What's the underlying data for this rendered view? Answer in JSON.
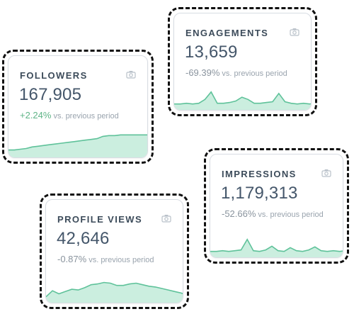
{
  "colors": {
    "accent_line": "#5fc29a",
    "accent_fill": "#cbeedf",
    "positive": "#5fb487",
    "neutral_change": "#8a949e",
    "title": "#3c4b5a",
    "value": "#44566a"
  },
  "cards": {
    "engagements": {
      "title": "ENGAGEMENTS",
      "value": "13,659",
      "change": "-69.39%",
      "comparison": "vs. previous period",
      "icon": "camera-icon",
      "spark": [
        4,
        4,
        5,
        4,
        5,
        10,
        20,
        5,
        5,
        6,
        8,
        13,
        10,
        5,
        5,
        6,
        7,
        18,
        7,
        5,
        4,
        5,
        4,
        5
      ]
    },
    "followers": {
      "title": "FOLLOWERS",
      "value": "167,905",
      "change": "+2.24%",
      "comparison": "vs. previous period",
      "icon": "camera-icon",
      "spark": [
        6,
        6,
        7,
        8,
        10,
        11,
        12,
        13,
        14,
        15,
        16,
        17,
        18,
        19,
        20,
        21,
        24,
        25,
        25,
        26,
        26,
        26,
        26,
        26,
        26
      ]
    },
    "impressions": {
      "title": "IMPRESSIONS",
      "value": "1,179,313",
      "change": "-52.66%",
      "comparison": "vs. previous period",
      "icon": "camera-icon",
      "spark": [
        4,
        4,
        5,
        4,
        5,
        6,
        20,
        5,
        4,
        6,
        11,
        5,
        4,
        9,
        5,
        4,
        6,
        10,
        5,
        4,
        5,
        4,
        5,
        6
      ]
    },
    "profile_views": {
      "title": "PROFILE VIEWS",
      "value": "42,646",
      "change": "-0.87%",
      "comparison": "vs. previous period",
      "icon": "camera-icon",
      "spark": [
        4,
        12,
        8,
        11,
        14,
        13,
        16,
        20,
        21,
        23,
        22,
        19,
        19,
        21,
        22,
        20,
        18,
        17,
        15,
        13,
        11,
        9,
        6
      ]
    }
  }
}
